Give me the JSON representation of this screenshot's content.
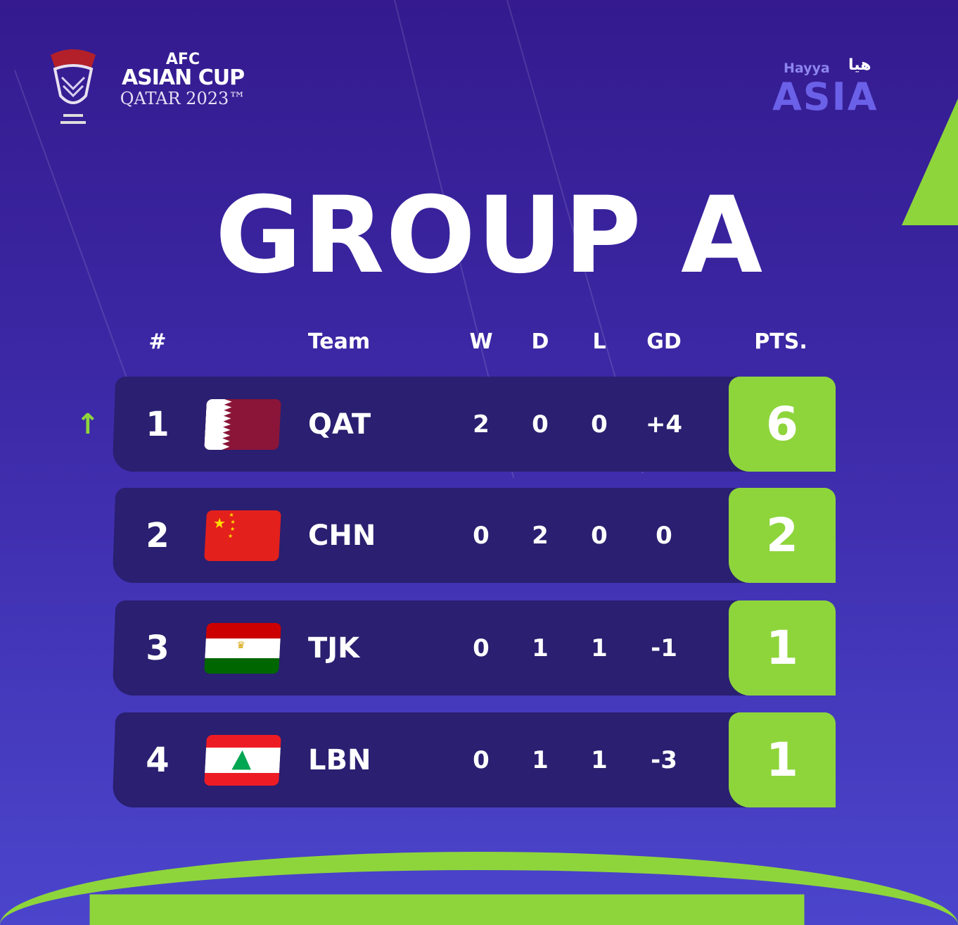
{
  "branding": {
    "afc_line1": "AFC",
    "afc_line2": "ASIAN CUP",
    "afc_line3": "QATAR 2023™",
    "hayya_en": "Hayya",
    "hayya_ar": "هيا",
    "hayya_asia": "ASIA"
  },
  "title": "GROUP A",
  "headers": {
    "rank": "#",
    "team": "Team",
    "w": "W",
    "d": "D",
    "l": "L",
    "gd": "GD",
    "pts": "PTS."
  },
  "rows": [
    {
      "rank": "1",
      "team": "QAT",
      "w": "2",
      "d": "0",
      "l": "0",
      "gd": "+4",
      "pts": "6",
      "flag": "qatar",
      "movement": "up"
    },
    {
      "rank": "2",
      "team": "CHN",
      "w": "0",
      "d": "2",
      "l": "0",
      "gd": "0",
      "pts": "2",
      "flag": "china"
    },
    {
      "rank": "3",
      "team": "TJK",
      "w": "0",
      "d": "1",
      "l": "1",
      "gd": "-1",
      "pts": "1",
      "flag": "tajikistan"
    },
    {
      "rank": "4",
      "team": "LBN",
      "w": "0",
      "d": "1",
      "l": "1",
      "gd": "-3",
      "pts": "1",
      "flag": "lebanon"
    }
  ],
  "colors": {
    "background": "#3a22a0",
    "row": "#2a1f70",
    "points": "#8ed53c",
    "arrow": "#8ed53c"
  },
  "icons": {
    "movement": "arrow-up-icon"
  }
}
